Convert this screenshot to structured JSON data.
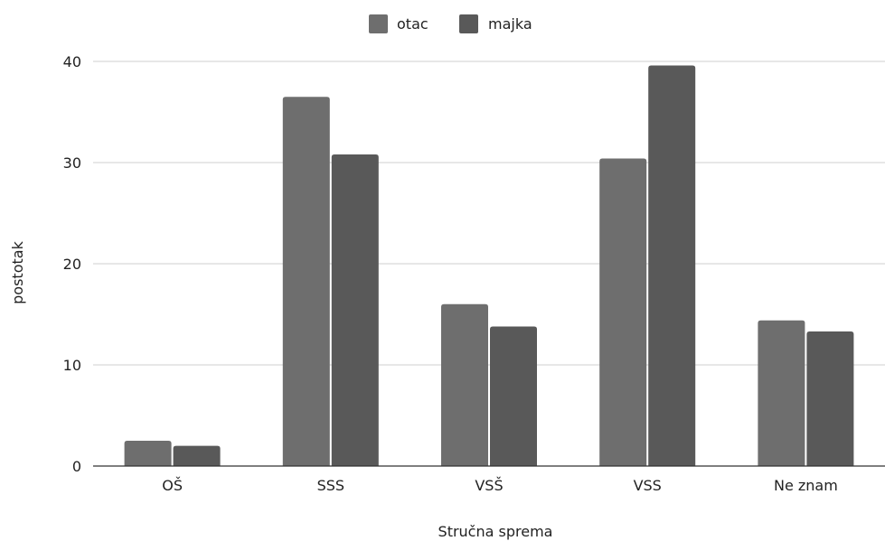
{
  "chart_data": {
    "type": "bar",
    "categories": [
      "OŠ",
      "SSS",
      "VSŠ",
      "VSS",
      "Ne znam"
    ],
    "series": [
      {
        "name": "otac",
        "values": [
          2.5,
          36.5,
          16.0,
          30.4,
          14.4
        ],
        "color": "#6e6e6e"
      },
      {
        "name": "majka",
        "values": [
          2.0,
          30.8,
          13.8,
          39.6,
          13.3
        ],
        "color": "#595959"
      }
    ],
    "xlabel": "Stručna sprema",
    "ylabel": "postotak",
    "ylim": [
      0,
      40
    ],
    "yticks": [
      0,
      10,
      20,
      30,
      40
    ],
    "grid": true,
    "legend": "top-center"
  }
}
